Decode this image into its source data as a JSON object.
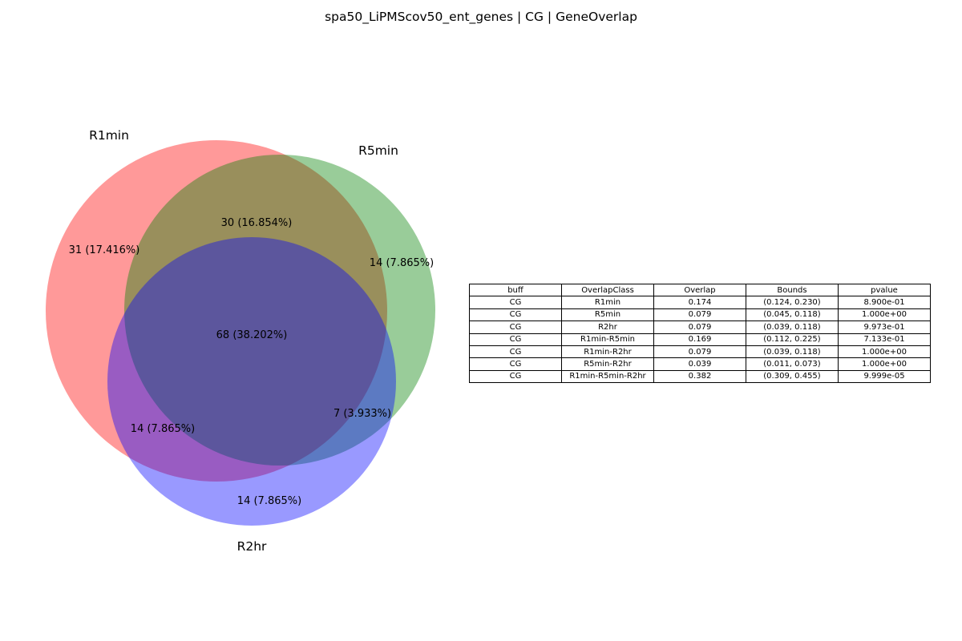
{
  "title": "spa50_LiPMScov50_ent_genes | CG | GeneOverlap",
  "venn": {
    "sets": [
      {
        "name": "R1min",
        "color": "#ff0000"
      },
      {
        "name": "R5min",
        "color": "#008000"
      },
      {
        "name": "R2hr",
        "color": "#0000ff"
      }
    ],
    "regions": {
      "r1_only": "31 (17.416%)",
      "r1_r5": "30 (16.854%)",
      "r5_only": "14 (7.865%)",
      "all": "68 (38.202%)",
      "r1_r2": "14 (7.865%)",
      "r5_r2": "7 (3.933%)",
      "r2_only": "14 (7.865%)"
    }
  },
  "table": {
    "headers": [
      "buff",
      "OverlapClass",
      "Overlap",
      "Bounds",
      "pvalue"
    ],
    "rows": [
      [
        "CG",
        "R1min",
        "0.174",
        "(0.124, 0.230)",
        "8.900e-01"
      ],
      [
        "CG",
        "R5min",
        "0.079",
        "(0.045, 0.118)",
        "1.000e+00"
      ],
      [
        "CG",
        "R2hr",
        "0.079",
        "(0.039, 0.118)",
        "9.973e-01"
      ],
      [
        "CG",
        "R1min-R5min",
        "0.169",
        "(0.112, 0.225)",
        "7.133e-01"
      ],
      [
        "CG",
        "R1min-R2hr",
        "0.079",
        "(0.039, 0.118)",
        "1.000e+00"
      ],
      [
        "CG",
        "R5min-R2hr",
        "0.039",
        "(0.011, 0.073)",
        "1.000e+00"
      ],
      [
        "CG",
        "R1min-R5min-R2hr",
        "0.382",
        "(0.309, 0.455)",
        "9.999e-05"
      ]
    ]
  }
}
